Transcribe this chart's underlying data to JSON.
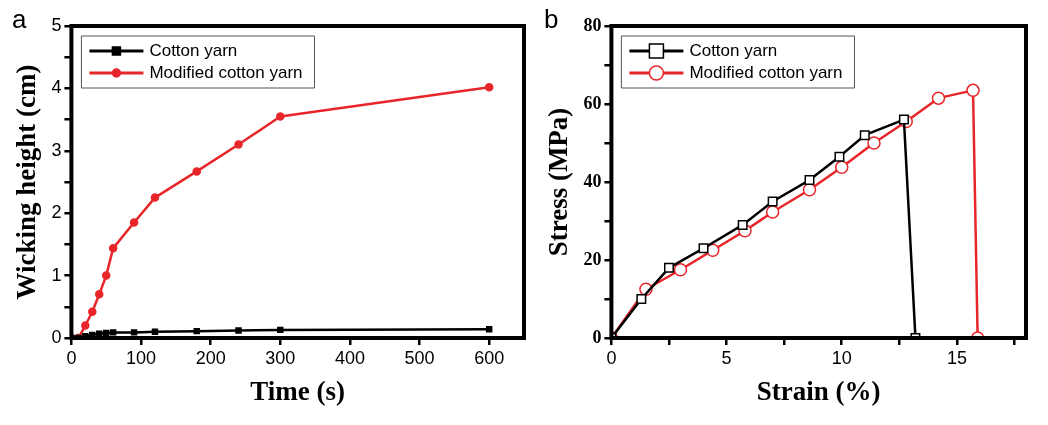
{
  "chart_data": [
    {
      "type": "line",
      "title": "a",
      "xlabel": "Time (s)",
      "ylabel": "Wicking height (cm)",
      "xlim": [
        0,
        650
      ],
      "xticks": [
        0,
        100,
        200,
        300,
        400,
        500,
        600
      ],
      "ylim": [
        0,
        5
      ],
      "yticks": [
        0,
        {
          "value": 0.5,
          "label": null
        },
        1,
        {
          "value": 1.5,
          "label": null
        },
        2,
        {
          "value": 2.5,
          "label": null
        },
        3,
        {
          "value": 3.5,
          "label": null
        },
        4,
        {
          "value": 4.5,
          "label": null
        },
        5
      ],
      "legend": "top left",
      "grid": false,
      "series": [
        {
          "name": "Cotton yarn",
          "color": "#000000",
          "marker": "square",
          "x": [
            0,
            10,
            20,
            30,
            40,
            50,
            60,
            90,
            120,
            180,
            240,
            300,
            600
          ],
          "values": [
            0,
            0,
            0.03,
            0.05,
            0.07,
            0.08,
            0.09,
            0.09,
            0.1,
            0.11,
            0.12,
            0.13,
            0.14
          ]
        },
        {
          "name": "Modified cotton yarn",
          "color": "#e8262a",
          "marker": "circle",
          "x": [
            0,
            10,
            20,
            30,
            40,
            50,
            60,
            90,
            120,
            180,
            240,
            300,
            600
          ],
          "values": [
            0,
            0,
            0.2,
            0.42,
            0.7,
            1.0,
            1.44,
            1.85,
            2.25,
            2.67,
            3.1,
            3.55,
            4.02
          ]
        }
      ]
    },
    {
      "type": "line",
      "title": "b",
      "xlabel": "Strain (%)",
      "ylabel": "Stress (MPa)",
      "xlim": [
        0,
        18
      ],
      "xticks": [
        0,
        {
          "value": 2.5,
          "label": null
        },
        5,
        {
          "value": 7.5,
          "label": null
        },
        10,
        {
          "value": 12.5,
          "label": null
        },
        15,
        {
          "value": 17.5,
          "label": null
        }
      ],
      "ylim": [
        0,
        80
      ],
      "yticks": [
        0,
        {
          "value": 10,
          "label": null
        },
        20,
        {
          "value": 30,
          "label": null
        },
        40,
        {
          "value": 50,
          "label": null
        },
        60,
        {
          "value": 70,
          "label": null
        },
        80
      ],
      "legend": "top left",
      "grid": false,
      "series": [
        {
          "name": "Cotton yarn",
          "color": "#000000",
          "marker": "square",
          "x": [
            0,
            1.3,
            2.5,
            4,
            5.7,
            7,
            8.6,
            9.9,
            11,
            12.7,
            13.2
          ],
          "values": [
            0,
            10,
            18,
            23,
            29,
            35,
            40.5,
            46.5,
            52,
            56,
            0
          ]
        },
        {
          "name": "Modified cotton yarn",
          "color": "#e8262a",
          "marker": "circle",
          "x": [
            0,
            1.5,
            3,
            4.4,
            5.8,
            7,
            8.6,
            10,
            11.4,
            12.8,
            14.2,
            15.7,
            15.9
          ],
          "values": [
            0,
            12.5,
            17.5,
            22.5,
            27.5,
            32.3,
            38,
            43.8,
            50,
            55.5,
            61.5,
            63.5,
            0
          ]
        }
      ]
    }
  ]
}
